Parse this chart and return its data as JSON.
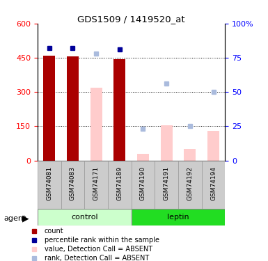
{
  "title": "GDS1509 / 1419520_at",
  "samples": [
    "GSM74081",
    "GSM74083",
    "GSM74171",
    "GSM74189",
    "GSM74190",
    "GSM74191",
    "GSM74192",
    "GSM74194"
  ],
  "control_indices": [
    0,
    1,
    2,
    3
  ],
  "leptin_indices": [
    4,
    5,
    6,
    7
  ],
  "red_bars": [
    460,
    455,
    null,
    445,
    null,
    null,
    null,
    null
  ],
  "pink_bars": [
    null,
    null,
    320,
    null,
    30,
    155,
    50,
    130
  ],
  "blue_squares_pct": [
    82,
    82,
    null,
    81,
    null,
    null,
    null,
    null
  ],
  "light_blue_squares_pct": [
    null,
    null,
    78,
    null,
    23,
    null,
    25,
    null
  ],
  "light_blue_squares2_pct": [
    null,
    null,
    null,
    null,
    null,
    56,
    null,
    50
  ],
  "ylim_left": [
    0,
    600
  ],
  "ylim_right": [
    0,
    100
  ],
  "yticks_left": [
    0,
    150,
    300,
    450,
    600
  ],
  "ytick_labels_left": [
    "0",
    "150",
    "300",
    "450",
    "600"
  ],
  "yticks_right": [
    0,
    25,
    50,
    75,
    100
  ],
  "ytick_labels_right": [
    "0",
    "25",
    "50",
    "75",
    "100%"
  ],
  "hgrid_vals": [
    150,
    300,
    450
  ],
  "bar_width": 0.5,
  "red_color": "#AA0000",
  "pink_color": "#FFCCCC",
  "blue_color": "#000099",
  "light_blue_color": "#AABBDD",
  "ctrl_light_color": "#CCFFCC",
  "ctrl_dark_color": "#44DD44",
  "lep_dark_color": "#22DD22",
  "gray_color": "#CCCCCC",
  "legend_items": [
    [
      "#AA0000",
      "count"
    ],
    [
      "#000099",
      "percentile rank within the sample"
    ],
    [
      "#FFCCCC",
      "value, Detection Call = ABSENT"
    ],
    [
      "#AABBDD",
      "rank, Detection Call = ABSENT"
    ]
  ]
}
